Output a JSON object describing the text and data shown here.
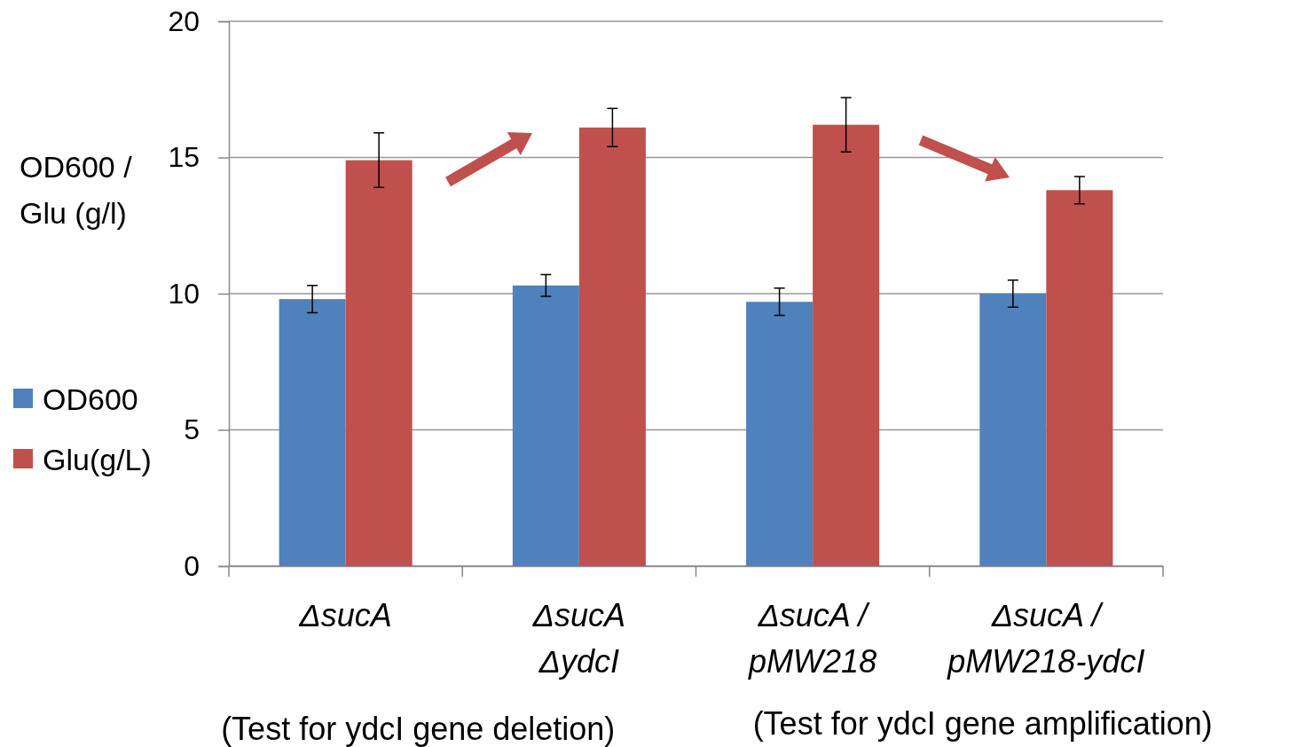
{
  "chart_data": {
    "type": "bar",
    "ylabel": "OD600 / Glu (g/l)",
    "categories": [
      "ΔsucA",
      "ΔsucA\nΔydcI",
      "ΔsucA /\npMW218",
      "ΔsucA /\npMW218-ydcI"
    ],
    "series": [
      {
        "name": "OD600",
        "color": "#4f81bd",
        "values": [
          9.8,
          10.3,
          9.7,
          10.0
        ],
        "errors": [
          0.5,
          0.4,
          0.5,
          0.5
        ]
      },
      {
        "name": "Glu(g/L)",
        "color": "#c0504d",
        "values": [
          14.9,
          16.1,
          16.2,
          13.8
        ],
        "errors": [
          1.0,
          0.7,
          1.0,
          0.5
        ]
      }
    ],
    "ylim": [
      0,
      20
    ],
    "yticks": [
      0,
      5,
      10,
      15,
      20
    ],
    "grid": "y",
    "legend": "left",
    "annotations": [
      "(Test for ydcI gene deletion)",
      "(Test for ydcI gene amplification)"
    ]
  }
}
